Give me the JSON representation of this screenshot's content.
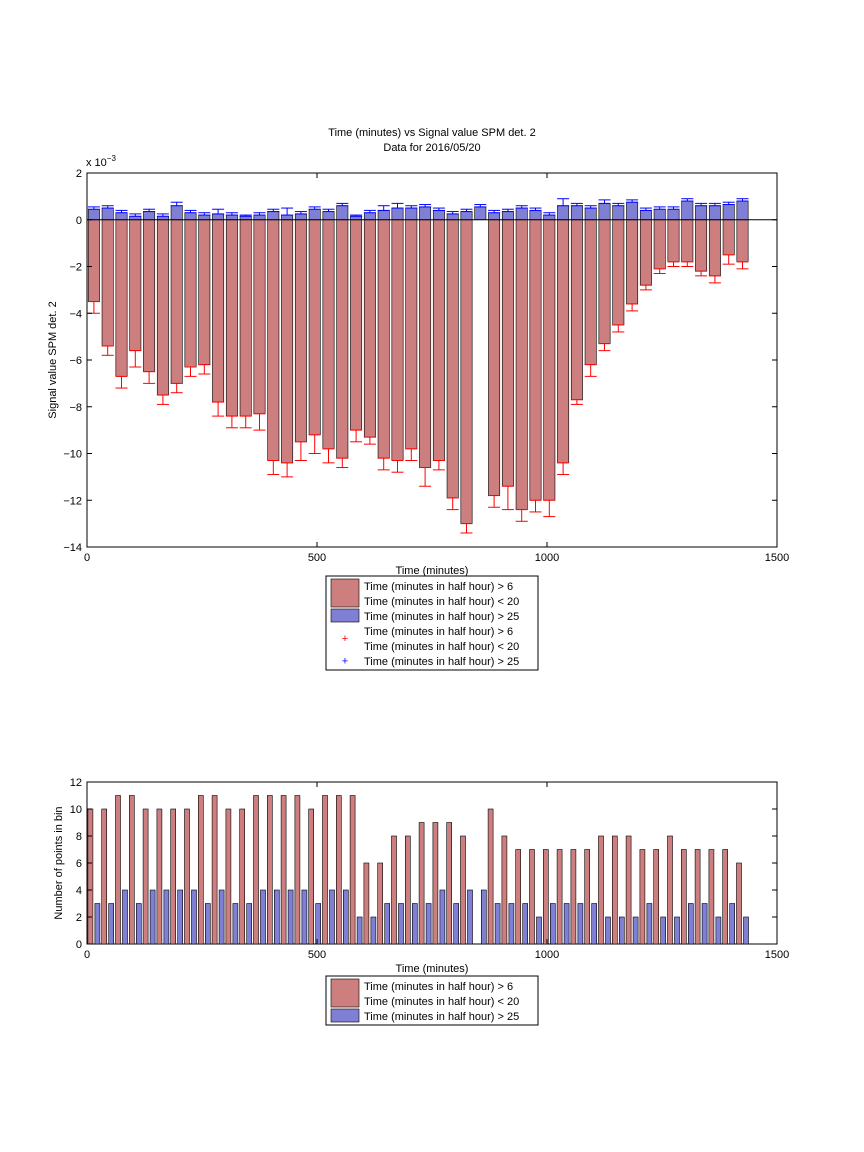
{
  "chart_data": [
    {
      "type": "bar",
      "title": "Time (minutes) vs Signal value SPM det. 2",
      "subtitle": "Data for 2016/05/20",
      "xlabel": "Time (minutes)",
      "ylabel": "Signal value SPM det. 2",
      "exponent_label": "x 10",
      "exponent_power": "−3",
      "xlim": [
        0,
        1500
      ],
      "ylim": [
        -14,
        2
      ],
      "xticks": [
        "0",
        "500",
        "1000",
        "1500"
      ],
      "yticks": [
        "2",
        "0",
        "−2",
        "−4",
        "−6",
        "−8",
        "−10",
        "−12",
        "−14"
      ],
      "x": [
        15,
        45,
        75,
        105,
        135,
        165,
        195,
        225,
        255,
        285,
        315,
        345,
        375,
        405,
        435,
        465,
        495,
        525,
        555,
        585,
        615,
        645,
        675,
        705,
        735,
        765,
        795,
        825,
        855,
        885,
        915,
        945,
        975,
        1005,
        1035,
        1065,
        1095,
        1125,
        1155,
        1185,
        1215,
        1245,
        1275,
        1305,
        1335,
        1365,
        1395,
        1425
      ],
      "series": [
        {
          "name": "Time (minutes in half hour) > 6\nTime (minutes in half hour) < 20",
          "color": "#cd7f7f",
          "values": [
            -3.5,
            -5.4,
            -6.7,
            -5.6,
            -6.5,
            -7.5,
            -7.0,
            -6.3,
            -6.2,
            -7.8,
            -8.4,
            -8.4,
            -8.3,
            -10.3,
            -10.4,
            -9.5,
            -9.2,
            -9.8,
            -10.2,
            -9.0,
            -9.3,
            -10.2,
            -10.3,
            -9.8,
            -10.6,
            -10.3,
            -11.9,
            -13.0,
            null,
            -11.8,
            -11.4,
            -12.4,
            -12.0,
            -12.0,
            -10.4,
            -7.7,
            -6.2,
            -5.3,
            -4.5,
            -3.6,
            -2.8,
            -2.1,
            -1.8,
            -1.8,
            -2.2,
            -2.4,
            -1.5,
            -1.8
          ],
          "err": [
            0.5,
            0.4,
            0.5,
            0.7,
            0.5,
            0.4,
            0.4,
            0.4,
            0.4,
            0.6,
            0.5,
            0.5,
            0.7,
            0.6,
            0.6,
            0.8,
            0.8,
            0.6,
            0.4,
            0.5,
            0.3,
            0.5,
            0.5,
            0.5,
            0.8,
            0.4,
            0.5,
            0.4,
            null,
            0.5,
            1.0,
            0.5,
            0.5,
            0.7,
            0.5,
            0.2,
            0.5,
            0.3,
            0.3,
            0.3,
            0.2,
            0.2,
            0.2,
            0.2,
            0.2,
            0.3,
            0.4,
            0.3
          ]
        },
        {
          "name": "Time (minutes in half hour) > 25",
          "color": "#7f7fd5",
          "values": [
            0.45,
            0.5,
            0.3,
            0.15,
            0.35,
            0.15,
            0.6,
            0.3,
            0.2,
            0.25,
            0.2,
            0.15,
            0.2,
            0.35,
            0.2,
            0.25,
            0.45,
            0.35,
            0.6,
            0.15,
            0.3,
            0.4,
            0.5,
            0.5,
            0.55,
            0.4,
            0.25,
            0.35,
            0.55,
            0.3,
            0.35,
            0.5,
            0.4,
            0.2,
            0.6,
            0.6,
            0.5,
            0.7,
            0.6,
            0.75,
            0.4,
            0.45,
            0.45,
            0.8,
            0.6,
            0.6,
            0.65,
            0.8
          ],
          "err": [
            0.1,
            0.1,
            0.1,
            0.1,
            0.1,
            0.1,
            0.15,
            0.1,
            0.1,
            0.2,
            0.1,
            0.05,
            0.1,
            0.1,
            0.3,
            0.1,
            0.1,
            0.1,
            0.1,
            0.05,
            0.1,
            0.2,
            0.2,
            0.1,
            0.1,
            0.1,
            0.1,
            0.1,
            0.1,
            0.1,
            0.1,
            0.1,
            0.1,
            0.1,
            0.3,
            0.1,
            0.1,
            0.15,
            0.1,
            0.1,
            0.1,
            0.1,
            0.1,
            0.1,
            0.1,
            0.1,
            0.1,
            0.1
          ]
        }
      ],
      "legend": {
        "placement": "below",
        "entries": [
          {
            "lines": [
              "Time (minutes in half hour) > 6",
              "Time (minutes in half hour) < 20"
            ],
            "kind": "patch",
            "color": "#cd7f7f"
          },
          {
            "lines": [
              "Time (minutes in half hour) > 25"
            ],
            "kind": "patch",
            "color": "#7f7fd5"
          },
          {
            "lines": [
              "Time (minutes in half hour) > 6",
              "Time (minutes in half hour) < 20"
            ],
            "kind": "marker",
            "marker": "+",
            "color": "#ff0000"
          },
          {
            "lines": [
              "Time (minutes in half hour) > 25"
            ],
            "kind": "marker",
            "marker": "+",
            "color": "#0000ff"
          }
        ]
      }
    },
    {
      "type": "bar",
      "xlabel": "Time (minutes)",
      "ylabel": "Number of points in bin",
      "xlim": [
        0,
        1500
      ],
      "ylim": [
        0,
        12
      ],
      "xticks": [
        "0",
        "500",
        "1000",
        "1500"
      ],
      "yticks": [
        "12",
        "10",
        "8",
        "6",
        "4",
        "2",
        "0"
      ],
      "x": [
        15,
        45,
        75,
        105,
        135,
        165,
        195,
        225,
        255,
        285,
        315,
        345,
        375,
        405,
        435,
        465,
        495,
        525,
        555,
        585,
        615,
        645,
        675,
        705,
        735,
        765,
        795,
        825,
        855,
        885,
        915,
        945,
        975,
        1005,
        1035,
        1065,
        1095,
        1125,
        1155,
        1185,
        1215,
        1245,
        1275,
        1305,
        1335,
        1365,
        1395,
        1425
      ],
      "series": [
        {
          "name": "Time (minutes in half hour) > 6\nTime (minutes in half hour) < 20",
          "color": "#cd7f7f",
          "values": [
            10,
            10,
            11,
            11,
            10,
            10,
            10,
            10,
            11,
            11,
            10,
            10,
            11,
            11,
            11,
            11,
            10,
            11,
            11,
            11,
            6,
            6,
            8,
            8,
            9,
            9,
            9,
            8,
            0,
            10,
            8,
            7,
            7,
            7,
            7,
            7,
            7,
            8,
            8,
            8,
            7,
            7,
            8,
            7,
            7,
            7,
            7,
            6
          ]
        },
        {
          "name": "Time (minutes in half hour) > 25",
          "color": "#7f7fd5",
          "values": [
            3,
            3,
            4,
            3,
            4,
            4,
            4,
            4,
            3,
            4,
            3,
            3,
            4,
            4,
            4,
            4,
            3,
            4,
            4,
            2,
            2,
            3,
            3,
            3,
            3,
            4,
            3,
            4,
            4,
            3,
            3,
            3,
            2,
            3,
            3,
            3,
            3,
            2,
            2,
            2,
            3,
            2,
            2,
            3,
            3,
            2,
            3,
            2
          ]
        }
      ],
      "legend": {
        "placement": "below",
        "entries": [
          {
            "lines": [
              "Time (minutes in half hour) > 6",
              "Time (minutes in half hour) < 20"
            ],
            "kind": "patch",
            "color": "#cd7f7f"
          },
          {
            "lines": [
              "Time (minutes in half hour) > 25"
            ],
            "kind": "patch",
            "color": "#7f7fd5"
          }
        ]
      }
    }
  ]
}
